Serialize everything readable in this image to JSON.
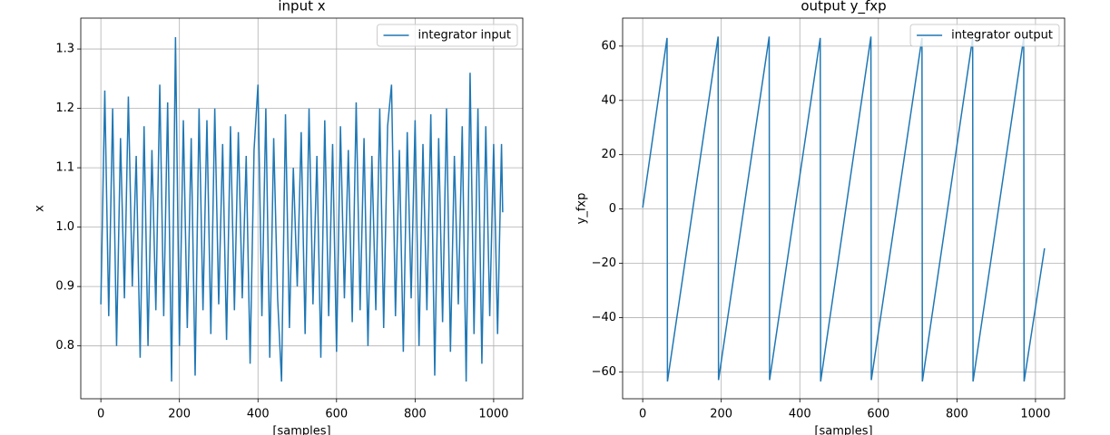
{
  "chart_data": [
    {
      "type": "line",
      "title": "input x",
      "xlabel": "[samples]",
      "ylabel": "x",
      "x": [
        0,
        10,
        20,
        30,
        40,
        50,
        60,
        70,
        80,
        90,
        100,
        110,
        120,
        130,
        140,
        150,
        160,
        170,
        180,
        190,
        200,
        210,
        220,
        230,
        240,
        250,
        260,
        270,
        280,
        290,
        300,
        310,
        320,
        330,
        340,
        350,
        360,
        370,
        380,
        390,
        400,
        410,
        420,
        430,
        440,
        450,
        460,
        470,
        480,
        490,
        500,
        510,
        520,
        530,
        540,
        550,
        560,
        570,
        580,
        590,
        600,
        610,
        620,
        630,
        640,
        650,
        660,
        670,
        680,
        690,
        700,
        710,
        720,
        730,
        740,
        750,
        760,
        770,
        780,
        790,
        800,
        810,
        820,
        830,
        840,
        850,
        860,
        870,
        880,
        890,
        900,
        910,
        920,
        930,
        940,
        950,
        960,
        970,
        980,
        990,
        1000,
        1010,
        1020,
        1023
      ],
      "series": [
        {
          "name": "integrator input",
          "color": "#1f77b4",
          "values": [
            0.87,
            1.23,
            0.85,
            1.2,
            0.8,
            1.15,
            0.88,
            1.22,
            0.9,
            1.12,
            0.78,
            1.17,
            0.8,
            1.13,
            0.86,
            1.24,
            0.85,
            1.21,
            0.74,
            1.32,
            0.8,
            1.18,
            0.83,
            1.15,
            0.75,
            1.2,
            0.86,
            1.18,
            0.82,
            1.2,
            0.87,
            1.14,
            0.81,
            1.17,
            0.86,
            1.16,
            0.88,
            1.12,
            0.77,
            1.13,
            1.24,
            0.85,
            1.2,
            0.78,
            1.15,
            0.88,
            0.74,
            1.19,
            0.83,
            1.1,
            0.9,
            1.16,
            0.82,
            1.2,
            0.87,
            1.12,
            0.78,
            1.18,
            0.85,
            1.14,
            0.79,
            1.17,
            0.88,
            1.13,
            0.84,
            1.21,
            0.86,
            1.15,
            0.8,
            1.12,
            0.86,
            1.2,
            0.83,
            1.17,
            1.24,
            0.85,
            1.13,
            0.79,
            1.16,
            0.88,
            1.18,
            0.8,
            1.14,
            0.86,
            1.19,
            0.75,
            1.15,
            0.84,
            1.2,
            0.79,
            1.12,
            0.87,
            1.17,
            0.74,
            1.26,
            0.82,
            1.2,
            0.77,
            1.17,
            0.85,
            1.14,
            0.82,
            1.14,
            1.025
          ]
        }
      ],
      "xlim": [
        -51.15,
        1074.15
      ],
      "xticks": [
        0,
        200,
        400,
        600,
        800,
        1000
      ],
      "ylim": [
        0.711,
        1.352
      ],
      "yticks": [
        0.8,
        0.9,
        {
          "value": 1,
          "label": "1.0"
        },
        1.1,
        1.2,
        1.3
      ],
      "grid": true,
      "legend": "upper right"
    },
    {
      "type": "line",
      "title": "output y_fxp",
      "xlabel": "[samples]",
      "ylabel": "y_fxp",
      "x": [
        0,
        62,
        63,
        192,
        193,
        322,
        323,
        452,
        453,
        581,
        582,
        711,
        712,
        840,
        841,
        970,
        971,
        1023
      ],
      "series": [
        {
          "name": "integrator output",
          "color": "#1f77b4",
          "values": [
            0.5,
            63,
            -63.5,
            63.5,
            -63,
            63.5,
            -63,
            63,
            -63.5,
            63.5,
            -63,
            63,
            -63.5,
            63,
            -63.5,
            63,
            -63.5,
            -14.5
          ]
        }
      ],
      "xlim": [
        -51.15,
        1074.15
      ],
      "xticks": [
        0,
        200,
        400,
        600,
        800,
        1000
      ],
      "ylim": [
        -69.9,
        70.3
      ],
      "yticks": [
        {
          "value": -60,
          "label": "−60"
        },
        {
          "value": -40,
          "label": "−40"
        },
        {
          "value": -20,
          "label": "−20"
        },
        0,
        20,
        40,
        60
      ],
      "grid": true,
      "legend": "upper right"
    }
  ]
}
